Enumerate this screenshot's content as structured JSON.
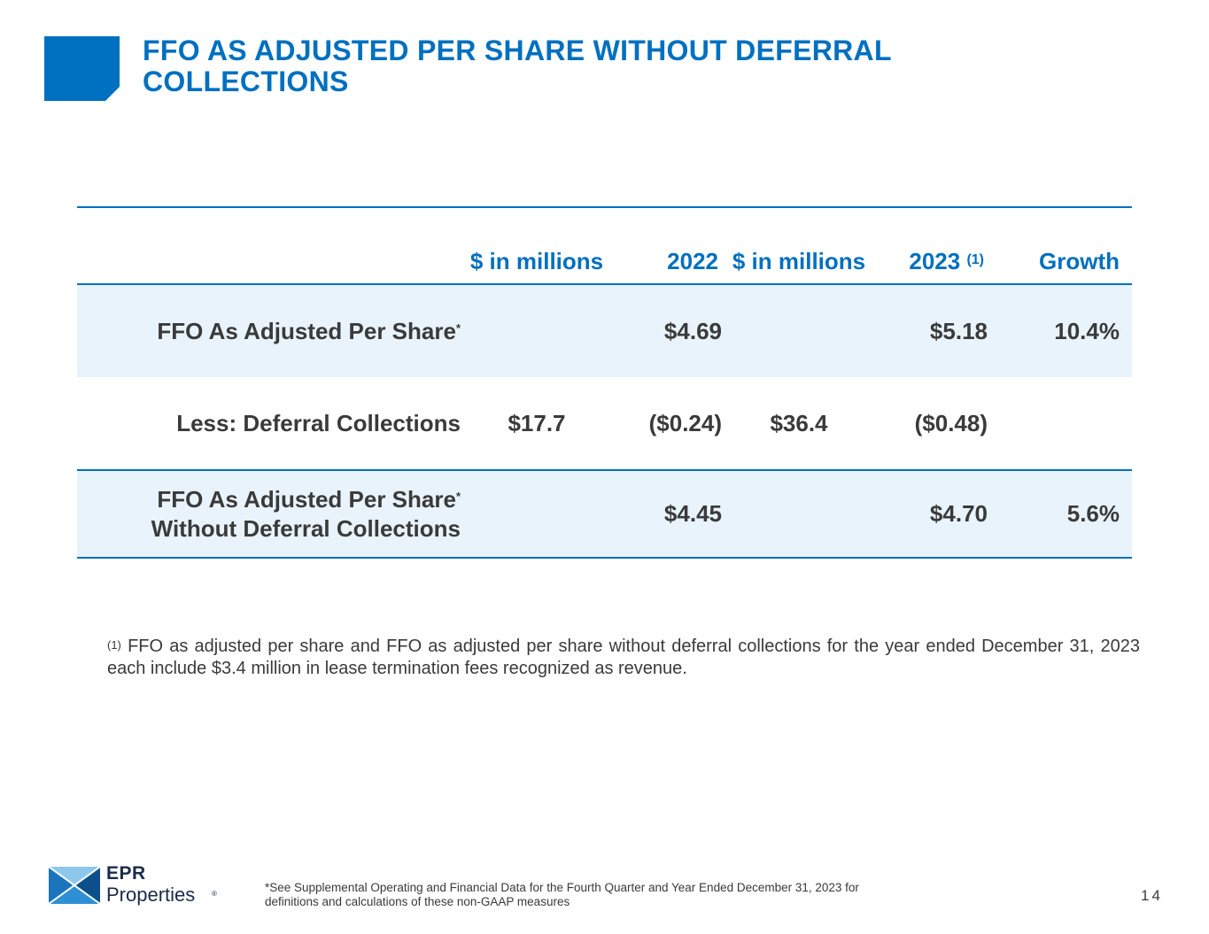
{
  "title": "FFO AS ADJUSTED PER SHARE WITHOUT DEFERRAL COLLECTIONS",
  "colors": {
    "accent": "#0070c0",
    "row_fill": "#e8f3fb",
    "text": "#3a3a3a"
  },
  "table": {
    "headers": {
      "unit_2022": "$ in millions",
      "year_2022": "2022",
      "unit_2023": "$ in millions",
      "year_2023": "2023",
      "year_2023_note": "(1)",
      "growth": "Growth"
    },
    "rows": [
      {
        "label": "FFO As Adjusted Per Share",
        "label_mark": "*",
        "unit_2022": "",
        "val_2022": "$4.69",
        "unit_2023": "",
        "val_2023": "$5.18",
        "growth": "10.4%"
      },
      {
        "label": "Less: Deferral Collections",
        "unit_2022": "$17.7",
        "val_2022": "($0.24)",
        "unit_2023": "$36.4",
        "val_2023": "($0.48)",
        "growth": ""
      },
      {
        "label_line1": "FFO As Adjusted Per Share",
        "label_mark": "*",
        "label_line2": "Without Deferral Collections",
        "unit_2022": "",
        "val_2022": "$4.45",
        "unit_2023": "",
        "val_2023": "$4.70",
        "growth": "5.6%"
      }
    ]
  },
  "note": {
    "marker": "(1)",
    "text": "FFO as adjusted per share and FFO as adjusted per share without deferral collections for the year ended December 31, 2023 each include $3.4 million in lease termination fees recognized as revenue."
  },
  "footer": {
    "logo_line1": "EPR",
    "logo_line2": "Properties",
    "logo_reg": "®",
    "footnote": "*See Supplemental Operating and Financial Data for the Fourth Quarter and Year Ended December 31, 2023 for definitions and calculations of these non-GAAP measures",
    "page_number": "14"
  }
}
